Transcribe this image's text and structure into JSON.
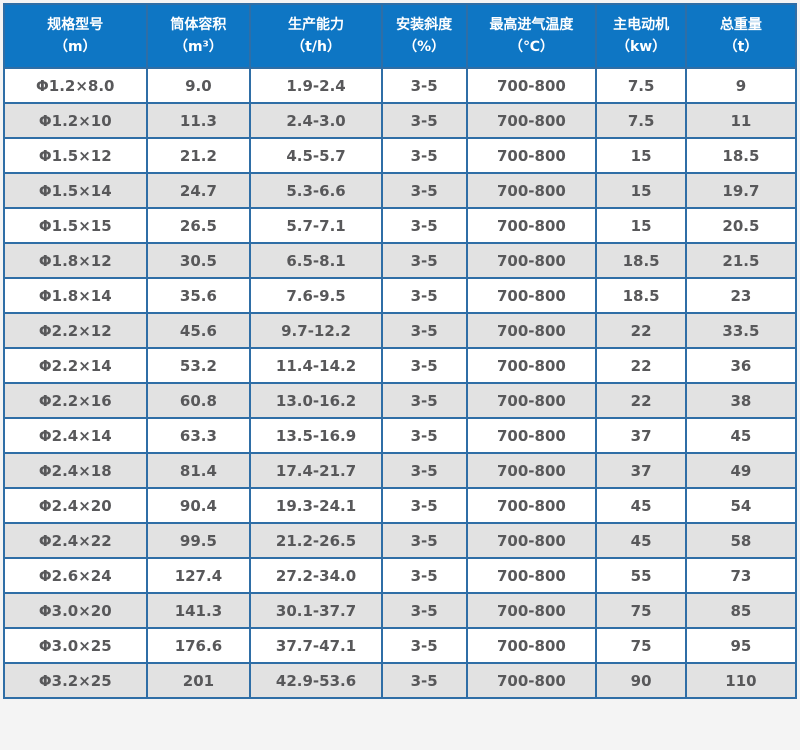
{
  "table": {
    "name": "rotary-dryer-specification-table",
    "columns": [
      {
        "label": "规格型号",
        "unit": "（m）"
      },
      {
        "label": "筒体容积",
        "unit": "（m³）"
      },
      {
        "label": "生产能力",
        "unit": "（t/h）"
      },
      {
        "label": "安装斜度",
        "unit": "（%）"
      },
      {
        "label": "最高进气温度",
        "unit": "（℃）"
      },
      {
        "label": "主电动机",
        "unit": "（kw）"
      },
      {
        "label": "总重量",
        "unit": "（t）"
      }
    ],
    "rows": [
      [
        "Φ1.2×8.0",
        "9.0",
        "1.9-2.4",
        "3-5",
        "700-800",
        "7.5",
        "9"
      ],
      [
        "Φ1.2×10",
        "11.3",
        "2.4-3.0",
        "3-5",
        "700-800",
        "7.5",
        "11"
      ],
      [
        "Φ1.5×12",
        "21.2",
        "4.5-5.7",
        "3-5",
        "700-800",
        "15",
        "18.5"
      ],
      [
        "Φ1.5×14",
        "24.7",
        "5.3-6.6",
        "3-5",
        "700-800",
        "15",
        "19.7"
      ],
      [
        "Φ1.5×15",
        "26.5",
        "5.7-7.1",
        "3-5",
        "700-800",
        "15",
        "20.5"
      ],
      [
        "Φ1.8×12",
        "30.5",
        "6.5-8.1",
        "3-5",
        "700-800",
        "18.5",
        "21.5"
      ],
      [
        "Φ1.8×14",
        "35.6",
        "7.6-9.5",
        "3-5",
        "700-800",
        "18.5",
        "23"
      ],
      [
        "Φ2.2×12",
        "45.6",
        "9.7-12.2",
        "3-5",
        "700-800",
        "22",
        "33.5"
      ],
      [
        "Φ2.2×14",
        "53.2",
        "11.4-14.2",
        "3-5",
        "700-800",
        "22",
        "36"
      ],
      [
        "Φ2.2×16",
        "60.8",
        "13.0-16.2",
        "3-5",
        "700-800",
        "22",
        "38"
      ],
      [
        "Φ2.4×14",
        "63.3",
        "13.5-16.9",
        "3-5",
        "700-800",
        "37",
        "45"
      ],
      [
        "Φ2.4×18",
        "81.4",
        "17.4-21.7",
        "3-5",
        "700-800",
        "37",
        "49"
      ],
      [
        "Φ2.4×20",
        "90.4",
        "19.3-24.1",
        "3-5",
        "700-800",
        "45",
        "54"
      ],
      [
        "Φ2.4×22",
        "99.5",
        "21.2-26.5",
        "3-5",
        "700-800",
        "45",
        "58"
      ],
      [
        "Φ2.6×24",
        "127.4",
        "27.2-34.0",
        "3-5",
        "700-800",
        "55",
        "73"
      ],
      [
        "Φ3.0×20",
        "141.3",
        "30.1-37.7",
        "3-5",
        "700-800",
        "75",
        "85"
      ],
      [
        "Φ3.0×25",
        "176.6",
        "37.7-47.1",
        "3-5",
        "700-800",
        "75",
        "95"
      ],
      [
        "Φ3.2×25",
        "201",
        "42.9-53.6",
        "3-5",
        "700-800",
        "90",
        "110"
      ]
    ],
    "colors": {
      "header_bg": "#0e76c4",
      "header_divider": "#0d5a9e",
      "header_text": "#ffffff",
      "border": "#2f6ea6",
      "row_even_bg": "#e2e2e2",
      "row_odd_bg": "#ffffff",
      "cell_text": "#58585a",
      "page_bg": "#f4f4f4"
    }
  }
}
